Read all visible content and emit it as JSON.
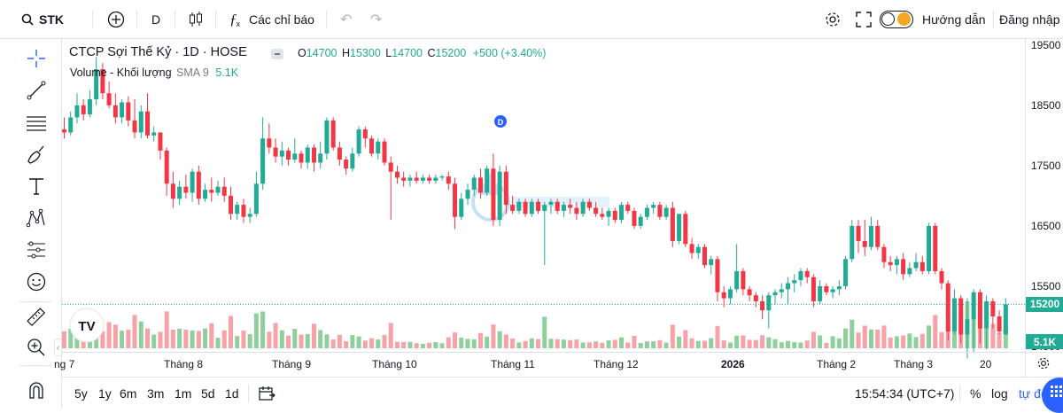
{
  "topbar": {
    "symbol": "STK",
    "interval": "D",
    "indicators_label": "Các chỉ báo",
    "guide_label": "Hướng dẫn",
    "login_label": "Đăng nhập"
  },
  "legend": {
    "title": "CTCP Sợi Thế Kỷ · 1D · HOSE",
    "o_label": "O",
    "o_value": "14700",
    "h_label": "H",
    "h_value": "15300",
    "l_label": "L",
    "l_value": "14700",
    "c_label": "C",
    "c_value": "15200",
    "change": "+500 (+3.40%)",
    "volume_label": "Volume - Khối lượng",
    "sma_label": "SMA 9",
    "volume_value": "5.1K"
  },
  "price_axis": {
    "ticks": [
      "19500",
      "18500",
      "17500",
      "16500",
      "15500",
      "14500"
    ],
    "last_price_tag": "15200",
    "volume_tag": "5.1K"
  },
  "time_axis": {
    "labels": [
      "ng 7",
      "Tháng 8",
      "Tháng 9",
      "Tháng 10",
      "Tháng 11",
      "Tháng 12",
      "2026",
      "Tháng 2",
      "Tháng 3",
      "20"
    ]
  },
  "marker_label": "D",
  "bottombar": {
    "ranges": [
      "5y",
      "1y",
      "6m",
      "3m",
      "1m",
      "5d",
      "1d"
    ],
    "time": "15:54:34 (UTC+7)",
    "percent": "%",
    "log": "log",
    "auto": "tự độ"
  },
  "colors": {
    "up": "#22ab94",
    "down": "#f23645",
    "up_vol": "#8fcf9b",
    "down_vol": "#f7a1a8",
    "accent": "#2962ff"
  },
  "chart_data": {
    "type": "candlestick",
    "ylim": [
      14000,
      19600
    ],
    "candles": [
      {
        "o": 18100,
        "h": 18300,
        "l": 17950,
        "c": 18050
      },
      {
        "o": 18050,
        "h": 18400,
        "l": 18000,
        "c": 18300
      },
      {
        "o": 18300,
        "h": 18700,
        "l": 18200,
        "c": 18500
      },
      {
        "o": 18500,
        "h": 18600,
        "l": 18250,
        "c": 18350
      },
      {
        "o": 18350,
        "h": 18750,
        "l": 18300,
        "c": 18600
      },
      {
        "o": 18600,
        "h": 19300,
        "l": 18500,
        "c": 19100
      },
      {
        "o": 19100,
        "h": 19200,
        "l": 18600,
        "c": 18700
      },
      {
        "o": 18700,
        "h": 18900,
        "l": 18450,
        "c": 18500
      },
      {
        "o": 18500,
        "h": 18700,
        "l": 18200,
        "c": 18300
      },
      {
        "o": 18300,
        "h": 18600,
        "l": 18200,
        "c": 18550
      },
      {
        "o": 18550,
        "h": 18650,
        "l": 18150,
        "c": 18250
      },
      {
        "o": 18250,
        "h": 18600,
        "l": 17950,
        "c": 18050
      },
      {
        "o": 18050,
        "h": 18500,
        "l": 17950,
        "c": 18400
      },
      {
        "o": 18400,
        "h": 18700,
        "l": 17950,
        "c": 18000
      },
      {
        "o": 18000,
        "h": 18150,
        "l": 17900,
        "c": 18050
      },
      {
        "o": 18050,
        "h": 18050,
        "l": 17600,
        "c": 17750
      },
      {
        "o": 17750,
        "h": 17800,
        "l": 17000,
        "c": 17200
      },
      {
        "o": 17200,
        "h": 17400,
        "l": 16800,
        "c": 16950
      },
      {
        "o": 16950,
        "h": 17250,
        "l": 16850,
        "c": 17150
      },
      {
        "o": 17150,
        "h": 17350,
        "l": 16950,
        "c": 17050
      },
      {
        "o": 17050,
        "h": 17450,
        "l": 16900,
        "c": 17400
      },
      {
        "o": 17400,
        "h": 17500,
        "l": 16850,
        "c": 16950
      },
      {
        "o": 16950,
        "h": 17200,
        "l": 16900,
        "c": 17100
      },
      {
        "o": 17100,
        "h": 17300,
        "l": 16900,
        "c": 17050
      },
      {
        "o": 17050,
        "h": 17250,
        "l": 17000,
        "c": 17150
      },
      {
        "o": 17150,
        "h": 17300,
        "l": 16900,
        "c": 17000
      },
      {
        "o": 17000,
        "h": 17150,
        "l": 16600,
        "c": 16700
      },
      {
        "o": 16700,
        "h": 16900,
        "l": 16600,
        "c": 16850
      },
      {
        "o": 16850,
        "h": 16950,
        "l": 16550,
        "c": 16650
      },
      {
        "o": 16650,
        "h": 16800,
        "l": 16550,
        "c": 16700
      },
      {
        "o": 16700,
        "h": 17400,
        "l": 16650,
        "c": 17200
      },
      {
        "o": 17200,
        "h": 18300,
        "l": 17100,
        "c": 17950
      },
      {
        "o": 17950,
        "h": 18200,
        "l": 17700,
        "c": 17800
      },
      {
        "o": 17800,
        "h": 17950,
        "l": 17550,
        "c": 17650
      },
      {
        "o": 17650,
        "h": 17900,
        "l": 17500,
        "c": 17750
      },
      {
        "o": 17750,
        "h": 17800,
        "l": 17500,
        "c": 17600
      },
      {
        "o": 17600,
        "h": 17950,
        "l": 17550,
        "c": 17700
      },
      {
        "o": 17700,
        "h": 17750,
        "l": 17450,
        "c": 17550
      },
      {
        "o": 17550,
        "h": 17850,
        "l": 17450,
        "c": 17800
      },
      {
        "o": 17800,
        "h": 17850,
        "l": 17400,
        "c": 17550
      },
      {
        "o": 17550,
        "h": 17900,
        "l": 17450,
        "c": 17700
      },
      {
        "o": 17700,
        "h": 18300,
        "l": 17600,
        "c": 18250
      },
      {
        "o": 18250,
        "h": 18300,
        "l": 17750,
        "c": 17800
      },
      {
        "o": 17800,
        "h": 17900,
        "l": 17500,
        "c": 17600
      },
      {
        "o": 17600,
        "h": 17650,
        "l": 17350,
        "c": 17450
      },
      {
        "o": 17450,
        "h": 17800,
        "l": 17400,
        "c": 17700
      },
      {
        "o": 17700,
        "h": 18150,
        "l": 17650,
        "c": 18100
      },
      {
        "o": 18100,
        "h": 18150,
        "l": 17800,
        "c": 17950
      },
      {
        "o": 17950,
        "h": 18000,
        "l": 17650,
        "c": 17700
      },
      {
        "o": 17700,
        "h": 17950,
        "l": 17600,
        "c": 17900
      },
      {
        "o": 17900,
        "h": 17950,
        "l": 17500,
        "c": 17550
      },
      {
        "o": 17550,
        "h": 17650,
        "l": 16600,
        "c": 17400
      },
      {
        "o": 17400,
        "h": 17500,
        "l": 17200,
        "c": 17300
      },
      {
        "o": 17300,
        "h": 17400,
        "l": 17150,
        "c": 17250
      },
      {
        "o": 17250,
        "h": 17350,
        "l": 17150,
        "c": 17300
      },
      {
        "o": 17300,
        "h": 17400,
        "l": 17200,
        "c": 17250
      },
      {
        "o": 17250,
        "h": 17350,
        "l": 17200,
        "c": 17300
      },
      {
        "o": 17300,
        "h": 17350,
        "l": 17200,
        "c": 17250
      },
      {
        "o": 17250,
        "h": 17350,
        "l": 17200,
        "c": 17300
      },
      {
        "o": 17300,
        "h": 17350,
        "l": 17250,
        "c": 17320
      },
      {
        "o": 17320,
        "h": 17400,
        "l": 17100,
        "c": 17200
      },
      {
        "o": 17200,
        "h": 17300,
        "l": 16450,
        "c": 16650
      },
      {
        "o": 16650,
        "h": 17050,
        "l": 16600,
        "c": 16950
      },
      {
        "o": 16950,
        "h": 17200,
        "l": 16850,
        "c": 17100
      },
      {
        "o": 17100,
        "h": 17350,
        "l": 17000,
        "c": 17300
      },
      {
        "o": 17300,
        "h": 17450,
        "l": 16950,
        "c": 17050
      },
      {
        "o": 17050,
        "h": 17500,
        "l": 17000,
        "c": 17450
      },
      {
        "o": 17450,
        "h": 17700,
        "l": 16500,
        "c": 16600
      },
      {
        "o": 16600,
        "h": 17500,
        "l": 16500,
        "c": 17400
      },
      {
        "o": 17400,
        "h": 17500,
        "l": 16700,
        "c": 16850
      },
      {
        "o": 16850,
        "h": 17000,
        "l": 16700,
        "c": 16750
      },
      {
        "o": 16750,
        "h": 16950,
        "l": 16700,
        "c": 16900
      },
      {
        "o": 16900,
        "h": 16950,
        "l": 16650,
        "c": 16700
      },
      {
        "o": 16700,
        "h": 16950,
        "l": 16650,
        "c": 16900
      },
      {
        "o": 16900,
        "h": 16950,
        "l": 16700,
        "c": 16750
      },
      {
        "o": 16750,
        "h": 16900,
        "l": 15850,
        "c": 16850
      },
      {
        "o": 16850,
        "h": 16950,
        "l": 16700,
        "c": 16900
      },
      {
        "o": 16900,
        "h": 16950,
        "l": 16700,
        "c": 16750
      },
      {
        "o": 16750,
        "h": 16900,
        "l": 16650,
        "c": 16850
      },
      {
        "o": 16850,
        "h": 16950,
        "l": 16700,
        "c": 16800
      },
      {
        "o": 16800,
        "h": 16900,
        "l": 16600,
        "c": 16700
      },
      {
        "o": 16700,
        "h": 16950,
        "l": 16650,
        "c": 16900
      },
      {
        "o": 16900,
        "h": 16950,
        "l": 16750,
        "c": 16800
      },
      {
        "o": 16800,
        "h": 16900,
        "l": 16650,
        "c": 16700
      },
      {
        "o": 16700,
        "h": 16800,
        "l": 16600,
        "c": 16650
      },
      {
        "o": 16650,
        "h": 16800,
        "l": 16500,
        "c": 16750
      },
      {
        "o": 16750,
        "h": 16800,
        "l": 16550,
        "c": 16600
      },
      {
        "o": 16600,
        "h": 16900,
        "l": 16550,
        "c": 16850
      },
      {
        "o": 16850,
        "h": 16900,
        "l": 16700,
        "c": 16750
      },
      {
        "o": 16750,
        "h": 16800,
        "l": 16450,
        "c": 16500
      },
      {
        "o": 16500,
        "h": 16700,
        "l": 16450,
        "c": 16650
      },
      {
        "o": 16650,
        "h": 16850,
        "l": 16600,
        "c": 16800
      },
      {
        "o": 16800,
        "h": 16900,
        "l": 16700,
        "c": 16850
      },
      {
        "o": 16850,
        "h": 16900,
        "l": 16600,
        "c": 16650
      },
      {
        "o": 16650,
        "h": 16850,
        "l": 16600,
        "c": 16800
      },
      {
        "o": 16800,
        "h": 16900,
        "l": 16150,
        "c": 16250
      },
      {
        "o": 16250,
        "h": 16700,
        "l": 16200,
        "c": 16700
      },
      {
        "o": 16700,
        "h": 16750,
        "l": 16150,
        "c": 16200
      },
      {
        "o": 16200,
        "h": 16300,
        "l": 15950,
        "c": 16050
      },
      {
        "o": 16050,
        "h": 16200,
        "l": 15950,
        "c": 16150
      },
      {
        "o": 16150,
        "h": 16200,
        "l": 15800,
        "c": 15850
      },
      {
        "o": 15850,
        "h": 16000,
        "l": 15700,
        "c": 15950
      },
      {
        "o": 15950,
        "h": 16000,
        "l": 15250,
        "c": 15400
      },
      {
        "o": 15400,
        "h": 15500,
        "l": 15150,
        "c": 15300
      },
      {
        "o": 15300,
        "h": 15500,
        "l": 15200,
        "c": 15450
      },
      {
        "o": 15450,
        "h": 16200,
        "l": 15400,
        "c": 15750
      },
      {
        "o": 15750,
        "h": 15800,
        "l": 15350,
        "c": 15450
      },
      {
        "o": 15450,
        "h": 15500,
        "l": 15250,
        "c": 15350
      },
      {
        "o": 15350,
        "h": 15400,
        "l": 15150,
        "c": 15250
      },
      {
        "o": 15250,
        "h": 15350,
        "l": 14950,
        "c": 15100
      },
      {
        "o": 15100,
        "h": 15400,
        "l": 14800,
        "c": 15350
      },
      {
        "o": 15350,
        "h": 15450,
        "l": 15200,
        "c": 15400
      },
      {
        "o": 15400,
        "h": 15550,
        "l": 15300,
        "c": 15450
      },
      {
        "o": 15450,
        "h": 15650,
        "l": 15200,
        "c": 15550
      },
      {
        "o": 15550,
        "h": 15700,
        "l": 15400,
        "c": 15600
      },
      {
        "o": 15600,
        "h": 15800,
        "l": 15500,
        "c": 15750
      },
      {
        "o": 15750,
        "h": 15800,
        "l": 15550,
        "c": 15650
      },
      {
        "o": 15650,
        "h": 15700,
        "l": 15150,
        "c": 15250
      },
      {
        "o": 15250,
        "h": 15600,
        "l": 15200,
        "c": 15500
      },
      {
        "o": 15500,
        "h": 15550,
        "l": 15350,
        "c": 15400
      },
      {
        "o": 15400,
        "h": 15500,
        "l": 15300,
        "c": 15450
      },
      {
        "o": 15450,
        "h": 15600,
        "l": 15350,
        "c": 15500
      },
      {
        "o": 15500,
        "h": 16000,
        "l": 15450,
        "c": 15950
      },
      {
        "o": 15950,
        "h": 16600,
        "l": 15900,
        "c": 16500
      },
      {
        "o": 16500,
        "h": 16600,
        "l": 16050,
        "c": 16250
      },
      {
        "o": 16250,
        "h": 16600,
        "l": 16000,
        "c": 16150
      },
      {
        "o": 16150,
        "h": 16650,
        "l": 16100,
        "c": 16500
      },
      {
        "o": 16500,
        "h": 16600,
        "l": 16100,
        "c": 16150
      },
      {
        "o": 16150,
        "h": 16200,
        "l": 15800,
        "c": 15900
      },
      {
        "o": 15900,
        "h": 16000,
        "l": 15750,
        "c": 15850
      },
      {
        "o": 15850,
        "h": 16000,
        "l": 15700,
        "c": 15950
      },
      {
        "o": 15950,
        "h": 16050,
        "l": 15600,
        "c": 15700
      },
      {
        "o": 15700,
        "h": 15900,
        "l": 15650,
        "c": 15800
      },
      {
        "o": 15800,
        "h": 16050,
        "l": 15750,
        "c": 15900
      },
      {
        "o": 15900,
        "h": 16000,
        "l": 15700,
        "c": 15750
      },
      {
        "o": 15750,
        "h": 16550,
        "l": 15700,
        "c": 16500
      },
      {
        "o": 16500,
        "h": 16550,
        "l": 15700,
        "c": 15750
      },
      {
        "o": 15750,
        "h": 15800,
        "l": 15450,
        "c": 15550
      },
      {
        "o": 15550,
        "h": 15600,
        "l": 14600,
        "c": 14750
      },
      {
        "o": 14750,
        "h": 15450,
        "l": 14700,
        "c": 15300
      },
      {
        "o": 15300,
        "h": 15350,
        "l": 14550,
        "c": 14700
      },
      {
        "o": 14700,
        "h": 15300,
        "l": 14300,
        "c": 14950
      },
      {
        "o": 14950,
        "h": 15450,
        "l": 14400,
        "c": 15400
      },
      {
        "o": 15400,
        "h": 15450,
        "l": 14550,
        "c": 14800
      },
      {
        "o": 14800,
        "h": 15350,
        "l": 14450,
        "c": 15250
      },
      {
        "o": 15250,
        "h": 15300,
        "l": 14800,
        "c": 15000
      },
      {
        "o": 15000,
        "h": 15100,
        "l": 14700,
        "c": 14750
      },
      {
        "o": 14700,
        "h": 15300,
        "l": 14700,
        "c": 15200
      }
    ]
  }
}
